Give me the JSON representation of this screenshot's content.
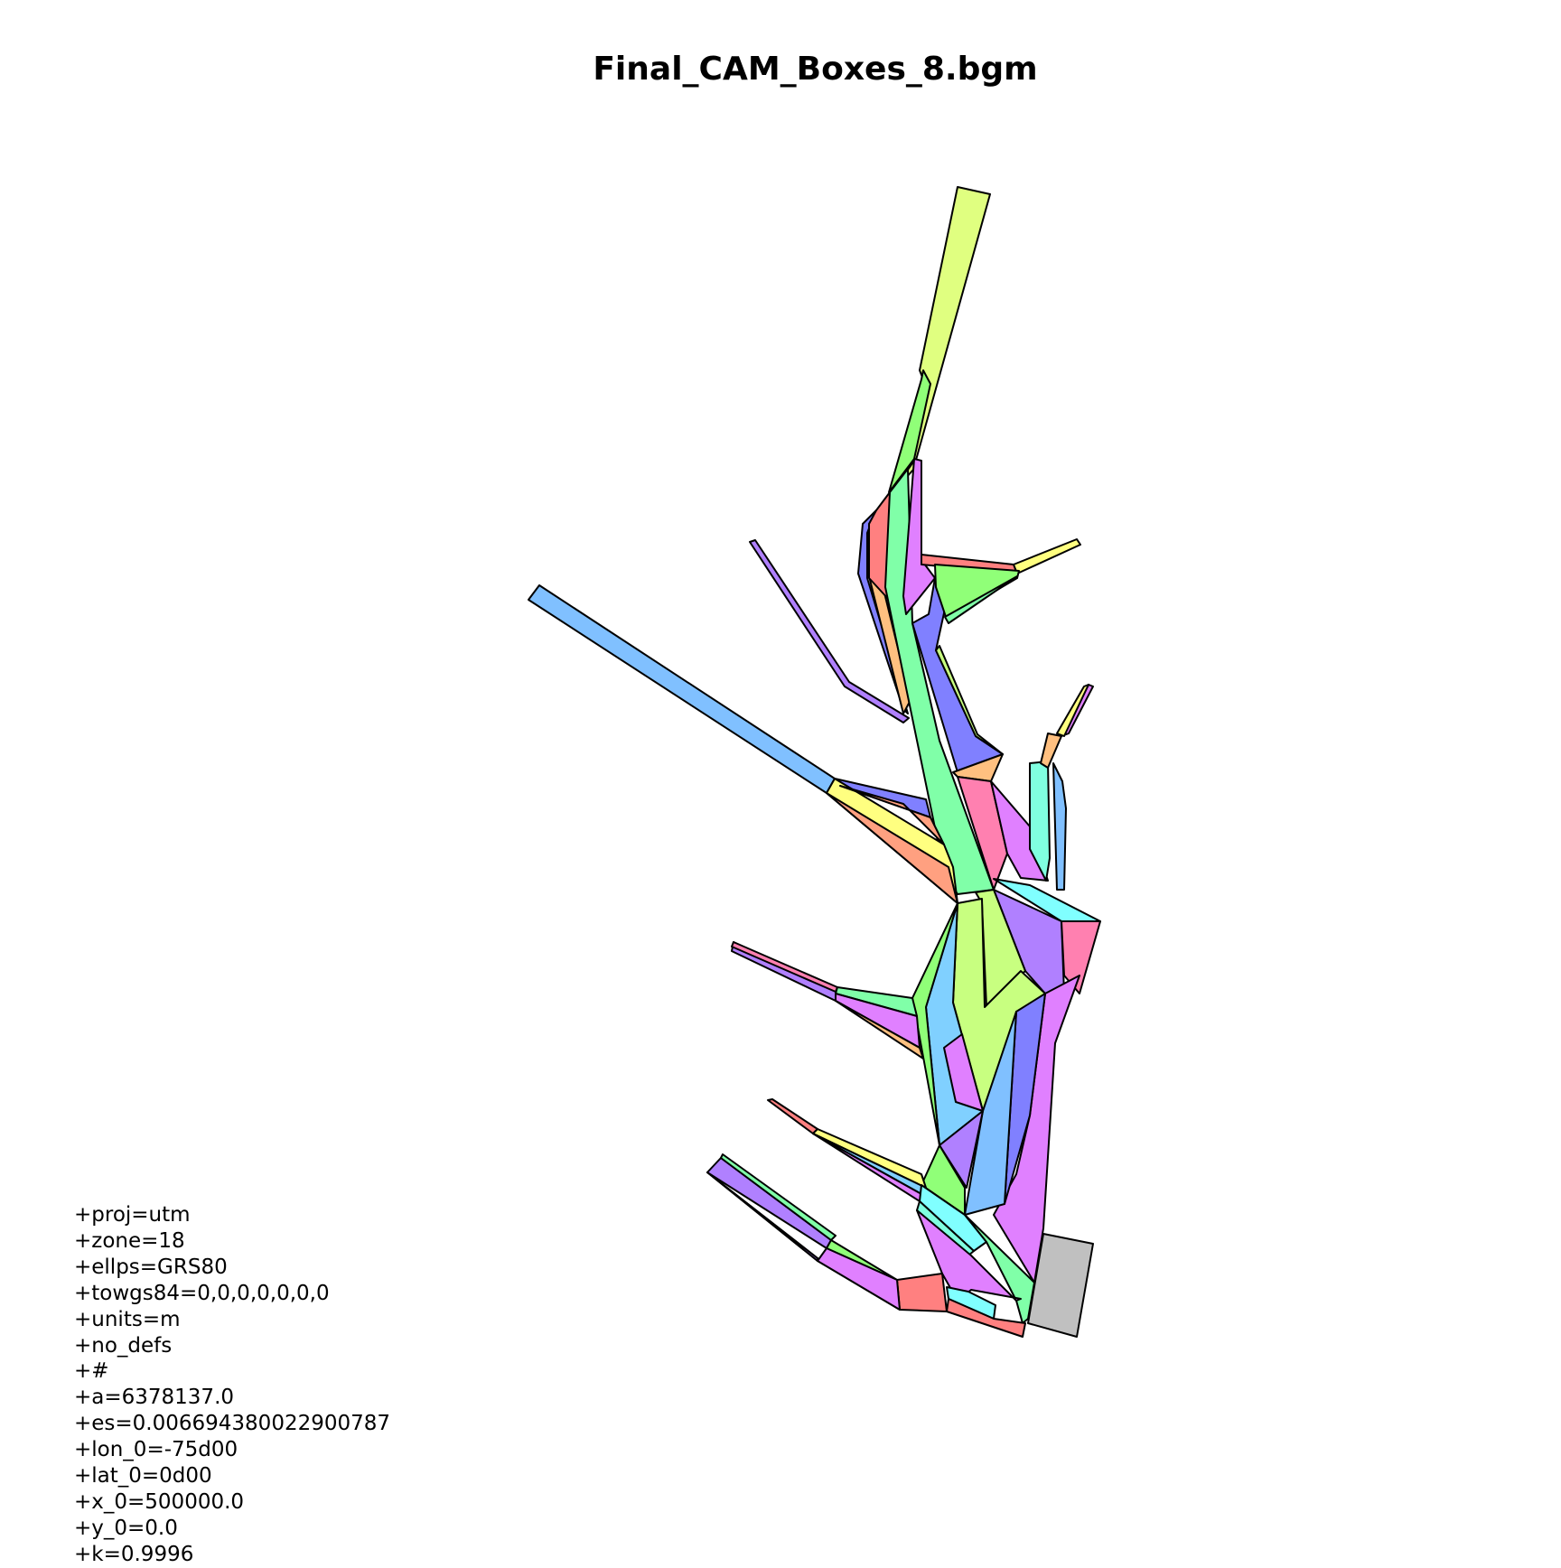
{
  "title": "Final_CAM_Boxes_8.bgm",
  "projection_lines": [
    "+proj=utm",
    "+zone=18",
    "+ellps=GRS80",
    "+towgs84=0,0,0,0,0,0,0",
    "+units=m",
    "+no_defs",
    "+#",
    "+a=6378137.0",
    "+es=0.006694380022900787",
    "+lon_0=-75d00",
    "+lat_0=0d00",
    "+x_0=500000.0",
    "+y_0=0.0",
    "+k=0.9996"
  ],
  "colors": {
    "yellow_green": "#e0ff80",
    "green": "#90ff78",
    "mint": "#80ffa8",
    "aqua": "#80ffe0",
    "cyan": "#80ffff",
    "sky": "#80d0ff",
    "blue": "#80c0ff",
    "periwinkle": "#8080ff",
    "violet": "#b080ff",
    "magenta": "#e080ff",
    "pink": "#ff80b0",
    "salmon": "#ff8080",
    "peach": "#ffa080",
    "orange": "#ffc080",
    "yellow": "#ffff80",
    "lime": "#c8ff80",
    "boundary_grey": "#c0c0c0"
  }
}
